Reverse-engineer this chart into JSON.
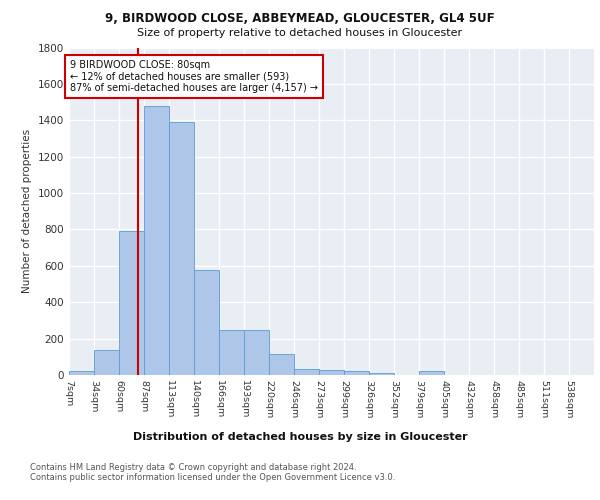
{
  "title1": "9, BIRDWOOD CLOSE, ABBEYMEAD, GLOUCESTER, GL4 5UF",
  "title2": "Size of property relative to detached houses in Gloucester",
  "xlabel": "Distribution of detached houses by size in Gloucester",
  "ylabel": "Number of detached properties",
  "bin_labels": [
    "7sqm",
    "34sqm",
    "60sqm",
    "87sqm",
    "113sqm",
    "140sqm",
    "166sqm",
    "193sqm",
    "220sqm",
    "246sqm",
    "273sqm",
    "299sqm",
    "326sqm",
    "352sqm",
    "379sqm",
    "405sqm",
    "432sqm",
    "458sqm",
    "485sqm",
    "511sqm",
    "538sqm"
  ],
  "bar_values": [
    20,
    135,
    790,
    1480,
    1390,
    575,
    248,
    248,
    115,
    35,
    25,
    20,
    10,
    0,
    20,
    0,
    0,
    0,
    0,
    0,
    0
  ],
  "bar_color": "#aec6e8",
  "bar_edge_color": "#5b9bd5",
  "background_color": "#e8eef4",
  "grid_color": "#ffffff",
  "vline_color": "#cc0000",
  "annotation_line1": "9 BIRDWOOD CLOSE: 80sqm",
  "annotation_line2": "← 12% of detached houses are smaller (593)",
  "annotation_line3": "87% of semi-detached houses are larger (4,157) →",
  "annotation_box_color": "#ffffff",
  "annotation_box_edge": "#cc0000",
  "footer_text": "Contains HM Land Registry data © Crown copyright and database right 2024.\nContains public sector information licensed under the Open Government Licence v3.0.",
  "ylim": [
    0,
    1800
  ],
  "yticks": [
    0,
    200,
    400,
    600,
    800,
    1000,
    1200,
    1400,
    1600,
    1800
  ]
}
